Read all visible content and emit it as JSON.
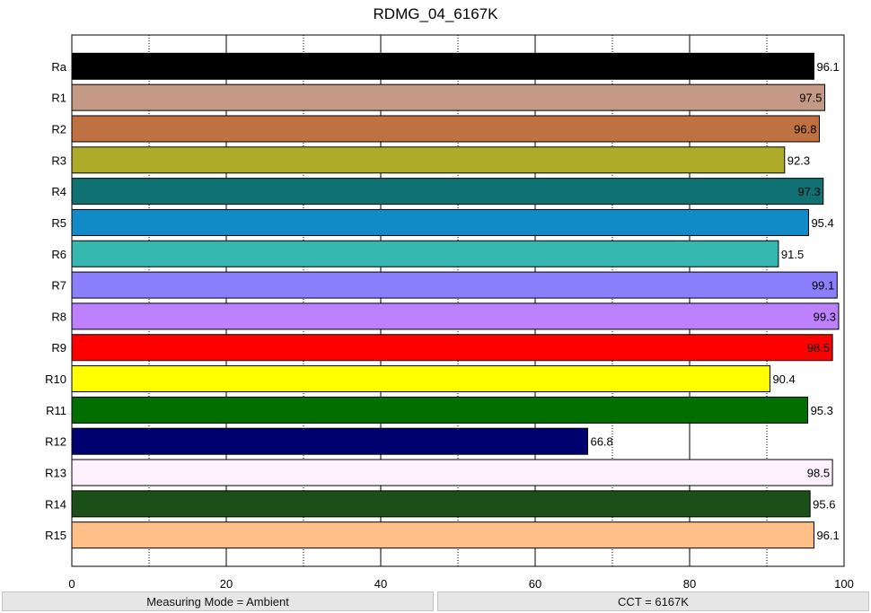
{
  "chart_data": {
    "type": "bar",
    "orientation": "horizontal",
    "title": "RDMG_04_6167K",
    "xlabel": "",
    "ylabel": "",
    "xlim": [
      0,
      100
    ],
    "x_ticks": [
      0,
      20,
      40,
      60,
      80,
      100
    ],
    "minor_gridlines": [
      10,
      30,
      50,
      70,
      90
    ],
    "grid": true,
    "categories": [
      "Ra",
      "R1",
      "R2",
      "R3",
      "R4",
      "R5",
      "R6",
      "R7",
      "R8",
      "R9",
      "R10",
      "R11",
      "R12",
      "R13",
      "R14",
      "R15"
    ],
    "values": [
      96.1,
      97.5,
      96.8,
      92.3,
      97.3,
      95.4,
      91.5,
      99.1,
      99.3,
      98.5,
      90.4,
      95.3,
      66.8,
      98.5,
      95.6,
      96.1
    ],
    "labels": [
      "96.1",
      "97.5",
      "96.8",
      "92.3",
      "97.3",
      "95.4",
      "91.5",
      "99.1",
      "99.3",
      "98.5",
      "90.4",
      "95.3",
      "66.8",
      "98.5",
      "95.6",
      "96.1"
    ],
    "colors": [
      "#000000",
      "#c49a86",
      "#bf7142",
      "#afac2a",
      "#0f7171",
      "#118bc8",
      "#35b8b0",
      "#8a80fe",
      "#bd81fe",
      "#ff0000",
      "#ffff00",
      "#006e00",
      "#00006e",
      "#fff0fd",
      "#1a5018",
      "#ffc088"
    ]
  },
  "status": {
    "left": "Measuring Mode = Ambient",
    "right": "CCT = 6167K"
  }
}
